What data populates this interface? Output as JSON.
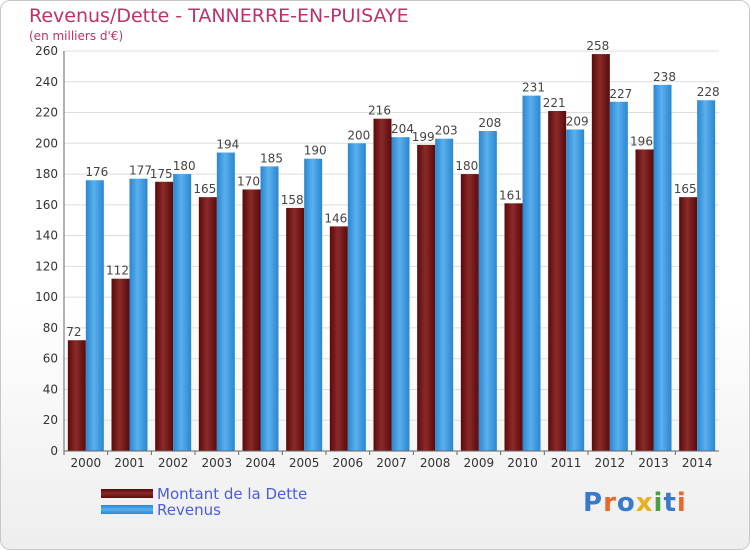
{
  "header": {
    "title": "Revenus/Dette - TANNERRE-EN-PUISAYE",
    "subtitle": "(en milliers d'€)"
  },
  "logo": {
    "text": "Proxiti",
    "colors": [
      "#3a78c8",
      "#e8672a",
      "#3a78c8",
      "#e8b020",
      "#4aa040",
      "#3a78c8",
      "#e8672a"
    ]
  },
  "colors": {
    "title": "#c0306a",
    "dette": "#7a1a1a",
    "revenus": "#3a96e0",
    "grid": "#dddddd",
    "axis_text": "#333333",
    "legend_text": "#4a5de0"
  },
  "chart_data": {
    "type": "bar",
    "title": "Revenus/Dette - TANNERRE-EN-PUISAYE",
    "subtitle": "(en milliers d'€)",
    "categories": [
      "2000",
      "2001",
      "2002",
      "2003",
      "2004",
      "2005",
      "2006",
      "2007",
      "2008",
      "2009",
      "2010",
      "2011",
      "2012",
      "2013",
      "2014"
    ],
    "series": [
      {
        "name": "Montant de la Dette",
        "values": [
          72,
          112,
          175,
          165,
          170,
          158,
          146,
          216,
          199,
          180,
          161,
          221,
          258,
          196,
          165
        ]
      },
      {
        "name": "Revenus",
        "values": [
          176,
          177,
          180,
          194,
          185,
          190,
          200,
          204,
          203,
          208,
          231,
          209,
          227,
          238,
          228
        ]
      }
    ],
    "ylim": [
      0,
      260
    ],
    "yticks": [
      0,
      20,
      40,
      60,
      80,
      100,
      120,
      140,
      160,
      180,
      200,
      220,
      240,
      260
    ],
    "grid": true,
    "legend": "bottom-left"
  }
}
